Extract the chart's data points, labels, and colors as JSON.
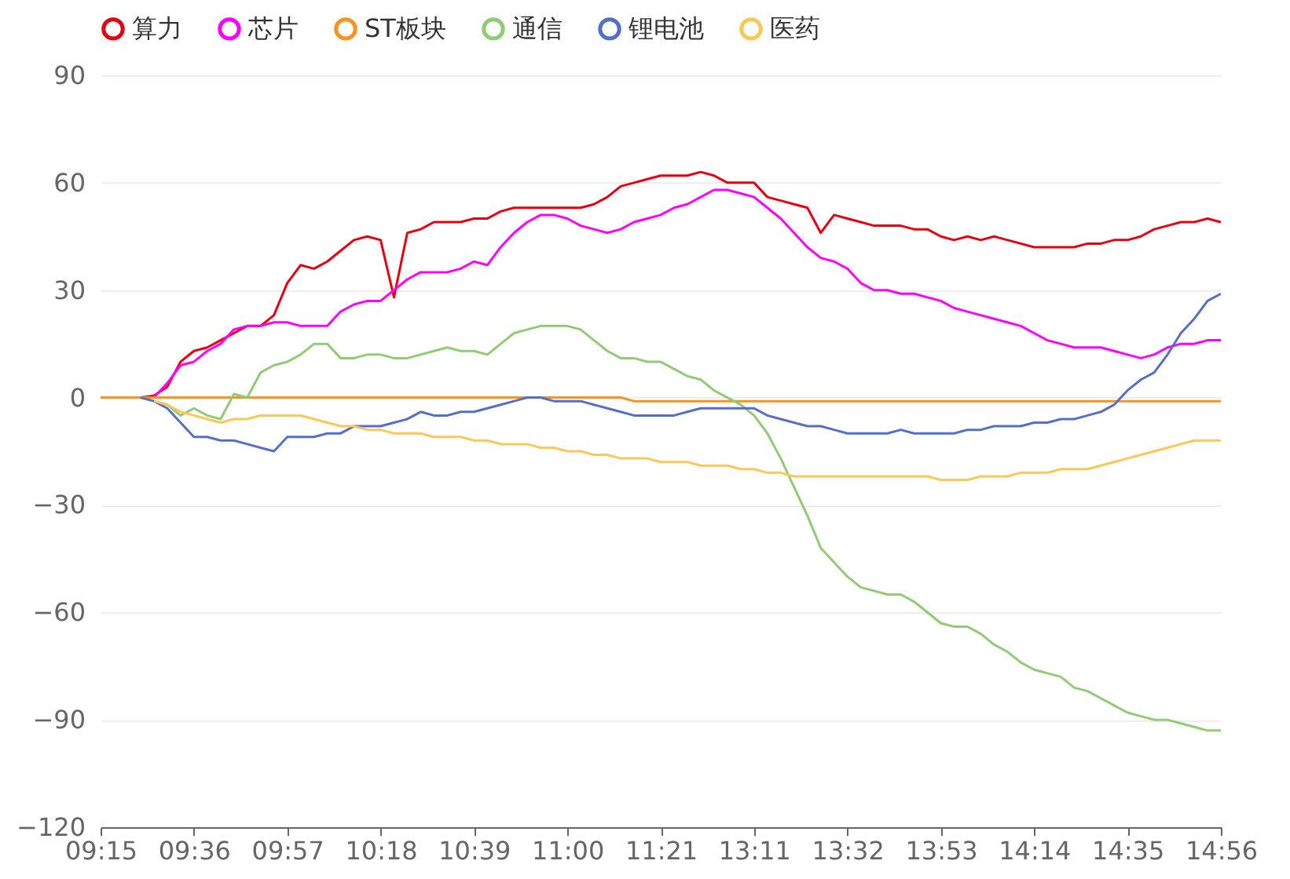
{
  "chart_data": {
    "type": "line",
    "categories": [
      "09:15",
      null,
      null,
      null,
      null,
      null,
      null,
      "09:36",
      null,
      null,
      null,
      null,
      null,
      null,
      "09:57",
      null,
      null,
      null,
      null,
      null,
      null,
      "10:18",
      null,
      null,
      null,
      null,
      null,
      null,
      "10:39",
      null,
      null,
      null,
      null,
      null,
      null,
      "11:00",
      null,
      null,
      null,
      null,
      null,
      null,
      "11:21",
      null,
      null,
      null,
      null,
      null,
      null,
      "13:11",
      null,
      null,
      null,
      null,
      null,
      null,
      "13:32",
      null,
      null,
      null,
      null,
      null,
      null,
      "13:53",
      null,
      null,
      null,
      null,
      null,
      null,
      "14:14",
      null,
      null,
      null,
      null,
      null,
      null,
      "14:35",
      null,
      null,
      null,
      null,
      null,
      null,
      "14:56"
    ],
    "series": [
      {
        "name": "算力",
        "color": "#e60012",
        "values": [
          null,
          null,
          null,
          0,
          0.5,
          3,
          10,
          13,
          14,
          16,
          18,
          20,
          20,
          23,
          32,
          37,
          36,
          38,
          41,
          44,
          45,
          44,
          28,
          46,
          47,
          49,
          49,
          49,
          50,
          50,
          52,
          53,
          53,
          53,
          53,
          53,
          53,
          54,
          56,
          59,
          60,
          61,
          62,
          62,
          62,
          63,
          62,
          60,
          60,
          60,
          56,
          55,
          54,
          53,
          46,
          51,
          50,
          49,
          48,
          48,
          48,
          47,
          47,
          45,
          44,
          45,
          44,
          45,
          44,
          43,
          42,
          42,
          42,
          42,
          43,
          43,
          44,
          44,
          45,
          47,
          48,
          49,
          49,
          50,
          49
        ]
      },
      {
        "name": "芯片",
        "color": "#ff00ff",
        "values": [
          null,
          null,
          null,
          null,
          0,
          4,
          9,
          10,
          13,
          15,
          19,
          20,
          20,
          21,
          21,
          20,
          20,
          20,
          24,
          26,
          27,
          27,
          30,
          33,
          35,
          35,
          35,
          36,
          38,
          37,
          42,
          46,
          49,
          51,
          51,
          50,
          48,
          47,
          46,
          47,
          49,
          50,
          51,
          53,
          54,
          56,
          58,
          58,
          57,
          56,
          53,
          50,
          46,
          42,
          39,
          38,
          36,
          32,
          30,
          30,
          29,
          29,
          28,
          27,
          25,
          24,
          23,
          22,
          21,
          20,
          18,
          16,
          15,
          14,
          14,
          14,
          13,
          12,
          11,
          12,
          14,
          15,
          15,
          16,
          16
        ]
      },
      {
        "name": "ST板块",
        "color": "#f7931e",
        "values": [
          0,
          0,
          0,
          0,
          0,
          0,
          0,
          0,
          0,
          0,
          0,
          0,
          0,
          0,
          0,
          0,
          0,
          0,
          0,
          0,
          0,
          0,
          0,
          0,
          0,
          0,
          0,
          0,
          0,
          0,
          0,
          0,
          0,
          0,
          0,
          0,
          0,
          0,
          0,
          0,
          -1,
          -1,
          -1,
          -1,
          -1,
          -1,
          -1,
          -1,
          -1,
          -1,
          -1,
          -1,
          -1,
          -1,
          -1,
          -1,
          -1,
          -1,
          -1,
          -1,
          -1,
          -1,
          -1,
          -1,
          -1,
          -1,
          -1,
          -1,
          -1,
          -1,
          -1,
          -1,
          -1,
          -1,
          -1,
          -1,
          -1,
          -1,
          -1,
          -1,
          -1,
          -1,
          -1,
          -1,
          -1
        ]
      },
      {
        "name": "通信",
        "color": "#91cc75",
        "values": [
          null,
          null,
          null,
          0,
          -1,
          -2,
          -5,
          -3,
          -5,
          -6,
          1,
          0,
          7,
          9,
          10,
          12,
          15,
          15,
          11,
          11,
          12,
          12,
          11,
          11,
          12,
          13,
          14,
          13,
          13,
          12,
          15,
          18,
          19,
          20,
          20,
          20,
          19,
          16,
          13,
          11,
          11,
          10,
          10,
          8,
          6,
          5,
          2,
          0,
          -2,
          -5,
          -10,
          -17,
          -25,
          -33,
          -42,
          -46,
          -50,
          -53,
          -54,
          -55,
          -55,
          -57,
          -60,
          -63,
          -64,
          -64,
          -66,
          -69,
          -71,
          -74,
          -76,
          -77,
          -78,
          -81,
          -82,
          -84,
          -86,
          -88,
          -89,
          -90,
          -90,
          -91,
          -92,
          -93,
          -93
        ]
      },
      {
        "name": "锂电池",
        "color": "#5470c6",
        "values": [
          null,
          null,
          null,
          0,
          -1,
          -3,
          -7,
          -11,
          -11,
          -12,
          -12,
          -13,
          -14,
          -15,
          -11,
          -11,
          -11,
          -10,
          -10,
          -8,
          -8,
          -8,
          -7,
          -6,
          -4,
          -5,
          -5,
          -4,
          -4,
          -3,
          -2,
          -1,
          0,
          0,
          -1,
          -1,
          -1,
          -2,
          -3,
          -4,
          -5,
          -5,
          -5,
          -5,
          -4,
          -3,
          -3,
          -3,
          -3,
          -3,
          -5,
          -6,
          -7,
          -8,
          -8,
          -9,
          -10,
          -10,
          -10,
          -10,
          -9,
          -10,
          -10,
          -10,
          -10,
          -9,
          -9,
          -8,
          -8,
          -8,
          -7,
          -7,
          -6,
          -6,
          -5,
          -4,
          -2,
          2,
          5,
          7,
          12,
          18,
          22,
          27,
          29
        ]
      },
      {
        "name": "医药",
        "color": "#fac858",
        "values": [
          null,
          null,
          null,
          null,
          -1,
          -2,
          -4,
          -5,
          -6,
          -7,
          -6,
          -6,
          -5,
          -5,
          -5,
          -5,
          -6,
          -7,
          -8,
          -8,
          -9,
          -9,
          -10,
          -10,
          -10,
          -11,
          -11,
          -11,
          -12,
          -12,
          -13,
          -13,
          -13,
          -14,
          -14,
          -15,
          -15,
          -16,
          -16,
          -17,
          -17,
          -17,
          -18,
          -18,
          -18,
          -19,
          -19,
          -19,
          -20,
          -20,
          -21,
          -21,
          -22,
          -22,
          -22,
          -22,
          -22,
          -22,
          -22,
          -22,
          -22,
          -22,
          -22,
          -23,
          -23,
          -23,
          -22,
          -22,
          -22,
          -21,
          -21,
          -21,
          -20,
          -20,
          -20,
          -19,
          -18,
          -17,
          -16,
          -15,
          -14,
          -13,
          -12,
          -12,
          -12
        ]
      }
    ],
    "ylim": [
      -120,
      90
    ],
    "yticks": [
      -120,
      -90,
      -60,
      -30,
      0,
      30,
      60,
      90
    ],
    "grid": "y",
    "legend": "top",
    "marker": "none",
    "line_style": "solid"
  }
}
